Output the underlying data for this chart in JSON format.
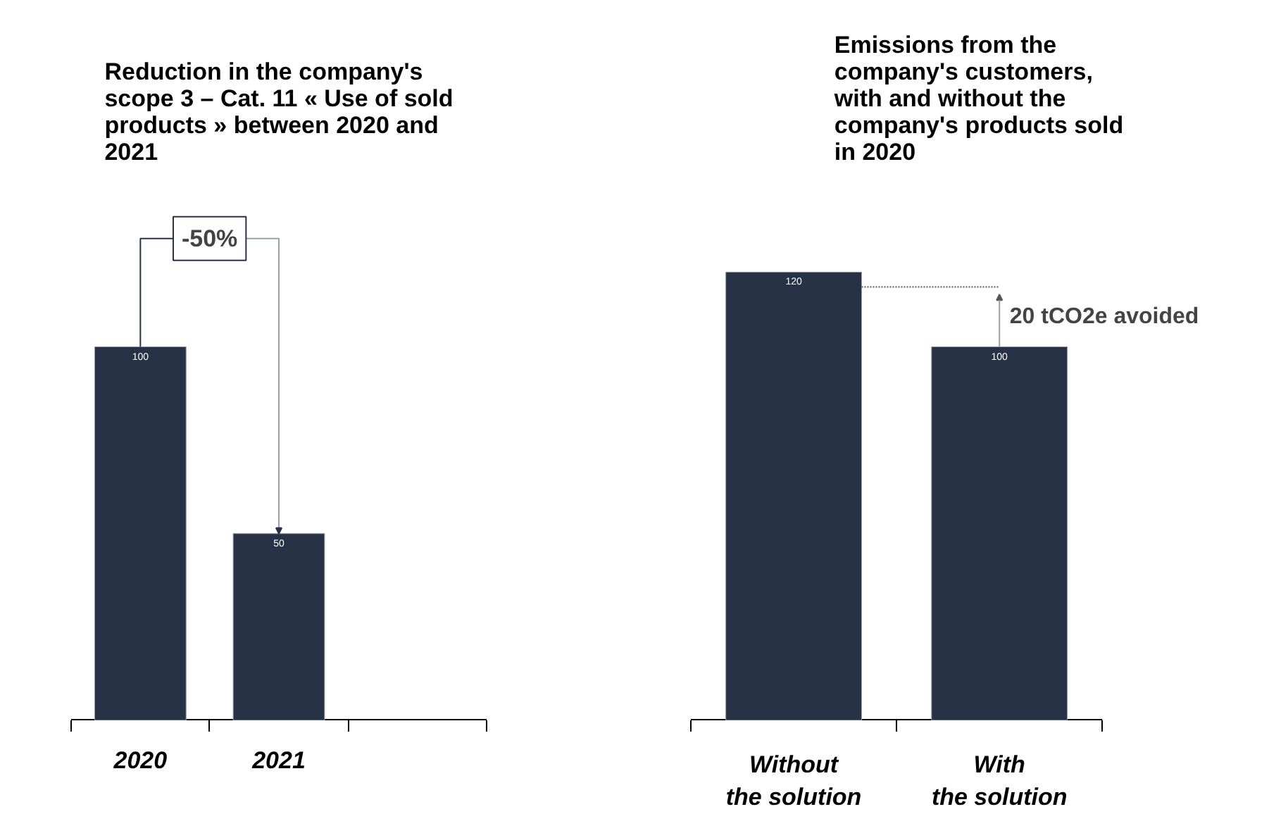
{
  "chart_data": [
    {
      "type": "bar",
      "title": "Reduction in the company's\nscope 3 – Cat. 11 « Use of sold\nproducts » between 2020 and\n2021",
      "categories": [
        "2020",
        "2021",
        null
      ],
      "values": [
        100,
        50,
        null
      ],
      "color": "#283247",
      "data_labels": true,
      "annotations": [
        "-50%"
      ]
    },
    {
      "type": "bar",
      "title": "Emissions from the\ncompany's customers,\nwith and without the\ncompany's products sold\nin 2020",
      "categories": [
        "Without\nthe solution",
        "With\nthe solution"
      ],
      "values": [
        120,
        100
      ],
      "color": "#283247",
      "data_labels": true,
      "annotations": [
        "20 tCO2e avoided"
      ]
    }
  ]
}
